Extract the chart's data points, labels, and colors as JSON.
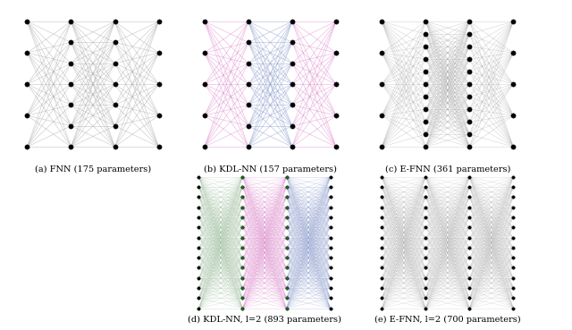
{
  "panels_top": [
    {
      "label": "(a) FNN (175 parameters)",
      "layers": [
        5,
        7,
        7,
        5
      ],
      "colors": [
        "#aaaaaa"
      ],
      "green_layers": [],
      "alpha": 0.55,
      "ms": 3.8
    },
    {
      "label": "(b) KDL-NN (157 parameters)",
      "layers": [
        5,
        7,
        7,
        5
      ],
      "colors": [
        "#dd88cc",
        "#8899cc"
      ],
      "green_layers": [],
      "alpha": 0.55,
      "ms": 3.8
    },
    {
      "label": "(c) E-FNN (361 parameters)",
      "layers": [
        5,
        11,
        11,
        5
      ],
      "colors": [
        "#aaaaaa"
      ],
      "green_layers": [],
      "alpha": 0.4,
      "ms": 3.8
    }
  ],
  "panels_bot": [
    {
      "label": "(d) KDL-NN, l=2 (893 parameters)",
      "layers": [
        14,
        14,
        14,
        14
      ],
      "colors": [
        "#99bb99",
        "#dd88cc",
        "#8899cc"
      ],
      "green_layers": [
        1,
        2
      ],
      "alpha": 0.3,
      "ms": 2.5
    },
    {
      "label": "(e) E-FNN, l=2 (700 parameters)",
      "layers": [
        14,
        14,
        14,
        14
      ],
      "colors": [
        "#aaaaaa"
      ],
      "green_layers": [],
      "alpha": 0.25,
      "ms": 2.5
    }
  ],
  "gray": "#aaaaaa",
  "pink": "#dd88cc",
  "blue": "#8899cc",
  "green_node": "#1a6b1a",
  "black_node": "black"
}
